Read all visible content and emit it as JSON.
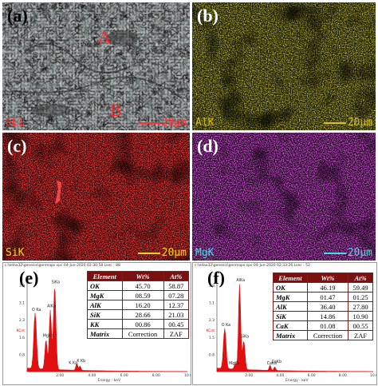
{
  "panels": {
    "a": {
      "label": "(a)",
      "element": "SE1",
      "scale": "20μm",
      "region_a": "A",
      "region_b": "B"
    },
    "b": {
      "label": "(b)",
      "element": "AlK",
      "scale": "20μm"
    },
    "c": {
      "label": "(c)",
      "element": "SiK",
      "scale": "20μm"
    },
    "d": {
      "label": "(d)",
      "element": "MgK",
      "scale": "20μm"
    },
    "e": {
      "label": "(e)",
      "header": "c:\\edax32\\genesis\\genmaps.spc  04-Jun-2020 02:30:58  Lsec : 88"
    },
    "f": {
      "label": "(f)",
      "header": "c:\\edax32\\genesis\\genmaps.spc  04-Jun-2020 02:33:26  Lsec : 52"
    }
  },
  "colors": {
    "al": "#d4c21a",
    "si": "#e01010",
    "mg": "#b21ab8",
    "table_header": "#7a1010",
    "spectrum": "#e01010"
  },
  "table_e": {
    "headers": [
      "Element",
      "Wt%",
      "At%"
    ],
    "rows": [
      [
        "OK",
        "45.70",
        "58.87"
      ],
      [
        "MgK",
        "08.59",
        "07.28"
      ],
      [
        "AlK",
        "16.20",
        "12.37"
      ],
      [
        "SiK",
        "28.66",
        "21.03"
      ],
      [
        "KK",
        "00.86",
        "00.45"
      ],
      [
        "Matrix",
        "Correction",
        "ZAF"
      ]
    ]
  },
  "table_f": {
    "headers": [
      "Element",
      "Wt%",
      "At%"
    ],
    "rows": [
      [
        "OK",
        "46.19",
        "59.49"
      ],
      [
        "MgK",
        "01.47",
        "01.25"
      ],
      [
        "AlK",
        "36.40",
        "27.80"
      ],
      [
        "SiK",
        "14.86",
        "10.90"
      ],
      [
        "CaK",
        "01.08",
        "00.55"
      ],
      [
        "Matrix",
        "Correction",
        "ZAF"
      ]
    ]
  },
  "spectrum_e": {
    "peaks": [
      "O Ka",
      "MgKa",
      "AlKa",
      "SiKa",
      "K Kb",
      "K Ka"
    ],
    "y_ticks": [
      "3.9",
      "3.1",
      "2.3",
      "1.6",
      "0.8"
    ],
    "x_ticks": [
      "2.00",
      "4.00",
      "6.00",
      "8.00",
      "10.0"
    ],
    "x_label": "Energy - keV",
    "counts_label": "KCnt"
  },
  "spectrum_f": {
    "peaks": [
      "O Ka",
      "AlKa",
      "SiKa",
      "MgKa",
      "CaKb",
      "CaKa"
    ],
    "y_ticks": [
      "3.8",
      "3.1",
      "2.3",
      "1.5",
      "0.8"
    ],
    "x_ticks": [
      "2.00",
      "4.00",
      "6.00",
      "8.00",
      "10.0"
    ],
    "x_label": "Energy - keV",
    "counts_label": "KCnt"
  }
}
